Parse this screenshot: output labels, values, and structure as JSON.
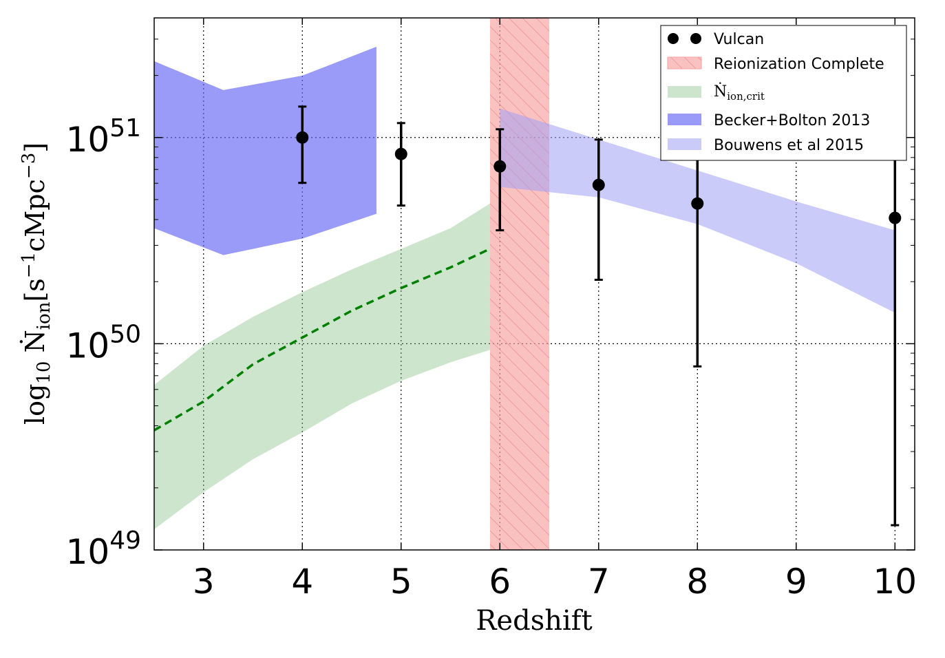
{
  "chart_data": {
    "type": "scatter",
    "xlabel": "Redshift",
    "ylabel": {
      "prefix": "log",
      "prefix_sub": "10",
      "symbol": "Ṅ",
      "symbol_sub": "ion",
      "unit_open": "[s",
      "unit_exp1": "−1",
      "unit_mid": "cMpc",
      "unit_exp2": "−3",
      "unit_close": "]"
    },
    "x_scale": "linear",
    "y_scale": "log",
    "xlim": [
      2.5,
      10.2
    ],
    "ylim_log10": [
      49,
      51.58
    ],
    "xticks": [
      {
        "value": 3,
        "label": "3"
      },
      {
        "value": 4,
        "label": "4"
      },
      {
        "value": 5,
        "label": "5"
      },
      {
        "value": 6,
        "label": "6"
      },
      {
        "value": 7,
        "label": "7"
      },
      {
        "value": 8,
        "label": "8"
      },
      {
        "value": 9,
        "label": "9"
      },
      {
        "value": 10,
        "label": "10"
      }
    ],
    "yticks": [
      {
        "log10": 49,
        "base": "10",
        "exp": "49"
      },
      {
        "log10": 50,
        "base": "10",
        "exp": "50"
      },
      {
        "log10": 51,
        "base": "10",
        "exp": "51"
      }
    ],
    "grid": true,
    "legend_position": "top-right",
    "legend": [
      {
        "key": "vulcan",
        "label": "Vulcan"
      },
      {
        "key": "reion",
        "label": "Reionization Complete"
      },
      {
        "key": "crit",
        "label_main": "Ṅ",
        "label_sub": "ion,crit"
      },
      {
        "key": "becker",
        "label": "Becker+Bolton 2013"
      },
      {
        "key": "bouwens",
        "label": "Bouwens et al 2015"
      }
    ],
    "series": {
      "vulcan": {
        "name": "Vulcan",
        "color": "#000000",
        "points": [
          {
            "x": 4,
            "y_log10": 51.0,
            "ylo_log10": 50.78,
            "yhi_log10": 51.15
          },
          {
            "x": 5,
            "y_log10": 50.92,
            "ylo_log10": 50.67,
            "yhi_log10": 51.07
          },
          {
            "x": 6,
            "y_log10": 50.86,
            "ylo_log10": 50.55,
            "yhi_log10": 51.04
          },
          {
            "x": 7,
            "y_log10": 50.77,
            "ylo_log10": 50.31,
            "yhi_log10": 50.99
          },
          {
            "x": 8,
            "y_log10": 50.68,
            "ylo_log10": 49.89,
            "yhi_log10": 50.96
          },
          {
            "x": 10,
            "y_log10": 50.61,
            "ylo_log10": 49.12,
            "yhi_log10": 50.91
          }
        ]
      },
      "reionization": {
        "name": "Reionization Complete",
        "color": "#f8a0a0",
        "hatch_color": "#ee8080",
        "x_range": [
          5.9,
          6.5
        ]
      },
      "crit": {
        "name": "Ṅion,crit",
        "band_color": "#7fbf7f",
        "line_color": "#008000",
        "x": [
          2.5,
          3.0,
          3.5,
          4.0,
          4.5,
          5.0,
          5.5,
          5.9
        ],
        "median_log10": [
          49.58,
          49.72,
          49.9,
          50.03,
          50.16,
          50.27,
          50.37,
          50.46
        ],
        "upper_log10": [
          49.8,
          49.99,
          50.13,
          50.25,
          50.36,
          50.46,
          50.56,
          50.68
        ],
        "lower_log10": [
          49.1,
          49.28,
          49.44,
          49.57,
          49.71,
          49.82,
          49.91,
          49.97
        ]
      },
      "becker": {
        "name": "Becker+Bolton 2013",
        "color": "#6464f5",
        "x": [
          2.5,
          3.2,
          4.0,
          4.75
        ],
        "upper_log10": [
          51.37,
          51.23,
          51.3,
          51.44
        ],
        "lower_log10": [
          50.56,
          50.43,
          50.51,
          50.63
        ]
      },
      "bouwens": {
        "name": "Bouwens et al 2015",
        "color": "#a0a0f5",
        "x": [
          6.0,
          7.0,
          8.0,
          9.0,
          10.0
        ],
        "upper_log10": [
          51.14,
          50.99,
          50.84,
          50.69,
          50.55
        ],
        "lower_log10": [
          50.76,
          50.71,
          50.58,
          50.39,
          50.15
        ]
      }
    }
  }
}
